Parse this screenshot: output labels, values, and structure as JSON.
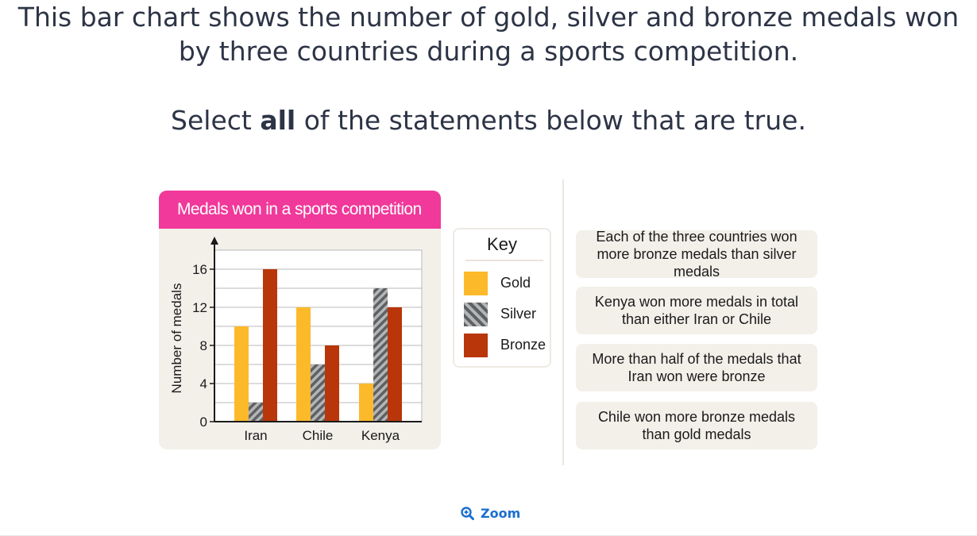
{
  "question": {
    "line1": "This bar chart shows the number of gold, silver and bronze medals won",
    "line2": "by three countries during a sports competition.",
    "select_prefix": "Select ",
    "select_bold": "all",
    "select_suffix": " of the statements below that are true."
  },
  "chart_data": {
    "type": "bar",
    "title": "Medals won in a sports competition",
    "ylabel": "Number of medals",
    "xlabel": "",
    "categories": [
      "Iran",
      "Chile",
      "Kenya"
    ],
    "series": [
      {
        "name": "Gold",
        "color": "#fcb92a",
        "values": [
          10,
          12,
          4
        ]
      },
      {
        "name": "Silver",
        "color": "#8a8c8e",
        "pattern": "hatched",
        "values": [
          2,
          6,
          14
        ]
      },
      {
        "name": "Bronze",
        "color": "#b9360a",
        "values": [
          16,
          8,
          12
        ]
      }
    ],
    "ylim": [
      0,
      18
    ],
    "yticks": [
      "0",
      "4",
      "8",
      "12",
      "16"
    ],
    "grid": true
  },
  "key": {
    "title": "Key",
    "items": [
      {
        "label": "Gold",
        "swatch": "gold"
      },
      {
        "label": "Silver",
        "swatch": "silver"
      },
      {
        "label": "Bronze",
        "swatch": "bronze"
      }
    ]
  },
  "options": [
    {
      "text": "Each of the three countries won more bronze medals than silver medals"
    },
    {
      "text": "Kenya won more medals in total than either Iran or Chile"
    },
    {
      "text": "More than half of the medals that Iran won were bronze"
    },
    {
      "text": "Chile won more bronze medals than gold medals"
    }
  ],
  "zoom": {
    "label": "Zoom",
    "icon": "zoom-in-icon"
  }
}
